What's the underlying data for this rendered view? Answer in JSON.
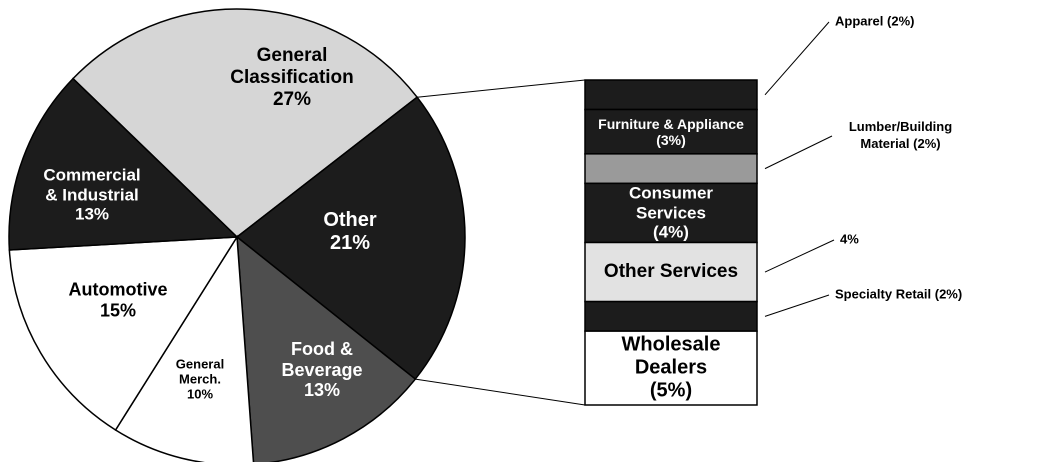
{
  "chart_data": {
    "type": "pie",
    "categories": [
      "General Classification",
      "Other",
      "Food & Beverage",
      "General Merch.",
      "Automotive",
      "Commercial & Industrial"
    ],
    "values": [
      27,
      21,
      13,
      10,
      15,
      13
    ],
    "value_labels": [
      "27%",
      "21%",
      "13%",
      "10%",
      "15%",
      "13%"
    ],
    "colors": [
      "#d6d6d6",
      "#1c1c1c",
      "#4e4e4e",
      "#ffffff",
      "#ffffff",
      "#1c1c1c"
    ],
    "breakdown": {
      "categories": [
        "Apparel",
        "Furniture & Appliance",
        "Lumber/Building Material",
        "Consumer Services",
        "Other Services",
        "Specialty Retail",
        "Wholesale Dealers"
      ],
      "values": [
        2,
        3,
        2,
        4,
        4,
        2,
        5
      ],
      "value_labels": [
        "(2%)",
        "(3%)",
        "(2%)",
        "(4%)",
        "4%",
        "(2%)",
        "(5%)"
      ],
      "colors": [
        "#1c1c1c",
        "#1c1c1c",
        "#9a9a9a",
        "#1c1c1c",
        "#e2e2e2",
        "#1c1c1c",
        "#ffffff"
      ]
    }
  }
}
